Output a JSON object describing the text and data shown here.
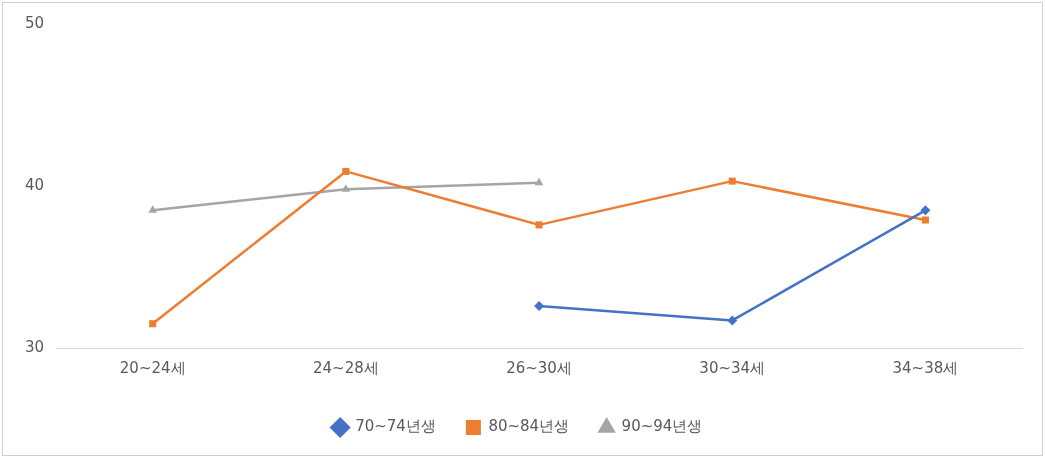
{
  "chart_data": {
    "type": "line",
    "categories": [
      "20~24세",
      "24~28세",
      "26~30세",
      "30~34세",
      "34~38세"
    ],
    "series": [
      {
        "name": "70~74년생",
        "color": "#4472c4",
        "marker": "diamond",
        "values": [
          null,
          null,
          32.6,
          31.7,
          38.5
        ]
      },
      {
        "name": "80~84년생",
        "color": "#ed7d31",
        "marker": "square",
        "values": [
          31.5,
          40.9,
          37.6,
          40.3,
          37.9
        ]
      },
      {
        "name": "90~94년생",
        "color": "#a5a5a5",
        "marker": "triangle",
        "values": [
          38.5,
          39.8,
          40.2,
          null,
          null
        ]
      }
    ],
    "ylim": [
      30,
      50
    ],
    "yticks": [
      30,
      40,
      50
    ],
    "grid": false,
    "legend": "bottom",
    "line_style": "solid"
  }
}
